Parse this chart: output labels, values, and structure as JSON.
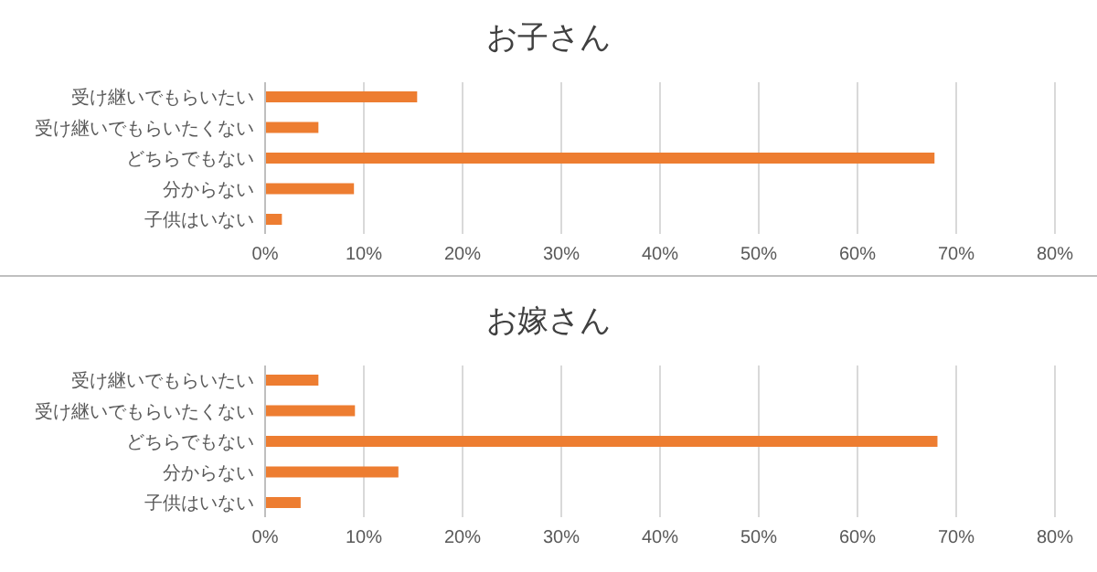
{
  "chart_data": [
    {
      "type": "bar",
      "orientation": "horizontal",
      "title": "お子さん",
      "categories": [
        "受け継いでもらいたい",
        "受け継いでもらいたくない",
        "どちらでもない",
        "分からない",
        "子供はいない"
      ],
      "values": [
        15.4,
        5.4,
        67.8,
        9.0,
        1.7
      ],
      "color": "#ed7d31",
      "xlim": [
        0,
        80
      ],
      "xticks": [
        {
          "value": 0,
          "label": "0%"
        },
        {
          "value": 10,
          "label": "10%"
        },
        {
          "value": 20,
          "label": "20%"
        },
        {
          "value": 30,
          "label": "30%"
        },
        {
          "value": 40,
          "label": "40%"
        },
        {
          "value": 50,
          "label": "50%"
        },
        {
          "value": 60,
          "label": "60%"
        },
        {
          "value": 70,
          "label": "70%"
        },
        {
          "value": 80,
          "label": "80%"
        }
      ],
      "grid": "x"
    },
    {
      "type": "bar",
      "orientation": "horizontal",
      "title": "お嫁さん",
      "categories": [
        "受け継いでもらいたい",
        "受け継いでもらいたくない",
        "どちらでもない",
        "分からない",
        "子供はいない"
      ],
      "values": [
        5.4,
        9.1,
        68.1,
        13.5,
        3.6
      ],
      "color": "#ed7d31",
      "xlim": [
        0,
        80
      ],
      "xticks": [
        {
          "value": 0,
          "label": "0%"
        },
        {
          "value": 10,
          "label": "10%"
        },
        {
          "value": 20,
          "label": "20%"
        },
        {
          "value": 30,
          "label": "30%"
        },
        {
          "value": 40,
          "label": "40%"
        },
        {
          "value": 50,
          "label": "50%"
        },
        {
          "value": 60,
          "label": "60%"
        },
        {
          "value": 70,
          "label": "70%"
        },
        {
          "value": 80,
          "label": "80%"
        }
      ],
      "grid": "x"
    }
  ]
}
